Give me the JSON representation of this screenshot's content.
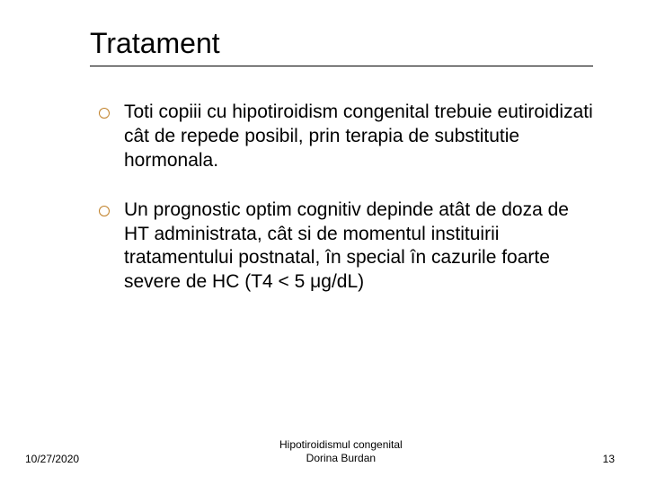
{
  "slide": {
    "title": "Tratament",
    "title_fontsize": 32,
    "title_color": "#000000",
    "title_rule_color": "#000000",
    "bullets": [
      {
        "marker_color": "#c08028",
        "text": "Toti copiii cu hipotiroidism congenital trebuie  eutiroidizati cât de repede posibil, prin terapia de substitutie hormonala."
      },
      {
        "marker_color": "#c08028",
        "text": "Un prognostic optim cognitiv depinde atât de doza de HT administrata, cât si de momentul instituirii tratamentului postnatal, în special în cazurile foarte severe de HC (T4 < 5 μg/dL)"
      }
    ],
    "body_fontsize": 21,
    "body_color": "#000000",
    "background_color": "#ffffff"
  },
  "footer": {
    "date": "10/27/2020",
    "center_line1": "Hipotiroidismul congenital",
    "center_line2": "Dorina Burdan",
    "page_number": "13",
    "fontsize": 12,
    "color": "#000000"
  }
}
